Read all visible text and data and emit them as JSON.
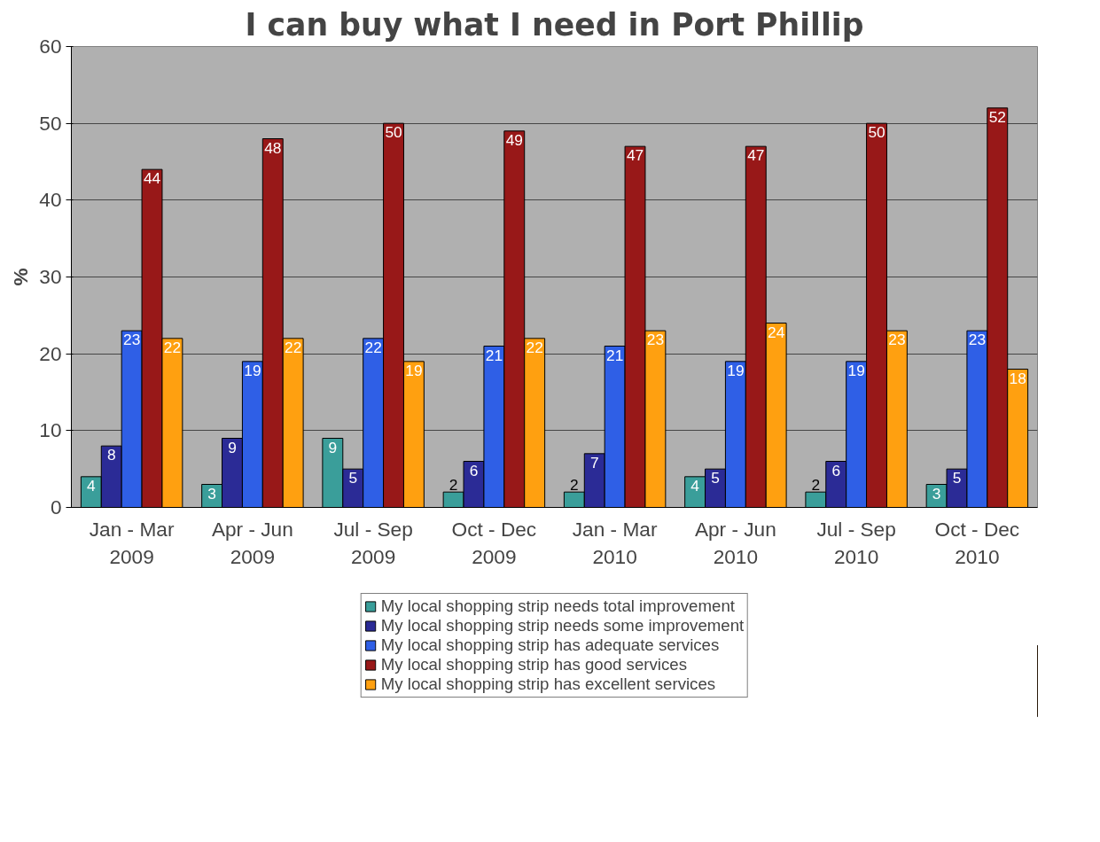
{
  "chart_data": {
    "type": "bar",
    "title": "I can buy what I need in Port Phillip",
    "ylabel": "%",
    "categories": [
      "Jan - Mar\n2009",
      "Apr - Jun\n2009",
      "Jul - Sep\n2009",
      "Oct - Dec\n2009",
      "Jan - Mar\n2010",
      "Apr - Jun\n2010",
      "Jul - Sep\n2010",
      "Oct - Dec\n2010"
    ],
    "series": [
      {
        "name": "My local shopping strip needs total improvement",
        "color": "#3a9e9a",
        "values": [
          4,
          3,
          9,
          2,
          2,
          4,
          2,
          3
        ]
      },
      {
        "name": "My local shopping strip needs some improvement",
        "color": "#2b2b96",
        "values": [
          8,
          9,
          5,
          6,
          7,
          5,
          6,
          5
        ]
      },
      {
        "name": "My local shopping strip has adequate services",
        "color": "#2f5fe6",
        "values": [
          23,
          19,
          22,
          21,
          21,
          19,
          19,
          23
        ]
      },
      {
        "name": "My local shopping strip has good services",
        "color": "#981818",
        "values": [
          44,
          48,
          50,
          49,
          47,
          47,
          50,
          52
        ]
      },
      {
        "name": "My local shopping strip has excellent services",
        "color": "#ffa010",
        "values": [
          22,
          22,
          19,
          22,
          23,
          24,
          23,
          18
        ]
      }
    ],
    "ylim": [
      0,
      60
    ],
    "yticks": [
      0,
      10,
      20,
      30,
      40,
      50,
      60
    ],
    "grid": "y",
    "legend": "bottom",
    "data_labels": true
  }
}
